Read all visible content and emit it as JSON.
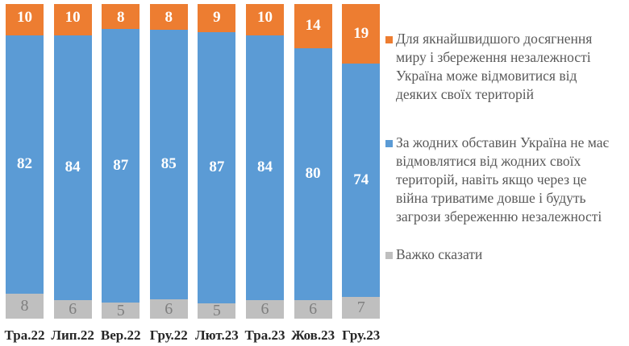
{
  "chart_data": {
    "type": "bar",
    "stacked": true,
    "percent_stacked": true,
    "title": "",
    "xlabel": "",
    "ylabel": "",
    "ylim": [
      0,
      100
    ],
    "grid": false,
    "legend_position": "right",
    "categories": [
      "Тра.22",
      "Лип.22",
      "Вер.22",
      "Гру.22",
      "Лют.23",
      "Тра.23",
      "Жов.23",
      "Гру.23"
    ],
    "series": [
      {
        "name": "Важко сказати",
        "color": "#bfbfbf",
        "values": [
          8,
          6,
          5,
          6,
          5,
          6,
          6,
          7
        ]
      },
      {
        "name": "За жодних обставин Україна не має відмовлятися від жодних своїх територій, навіть якщо через це війна триватиме довше і будуть загрози збереженню незалежності",
        "color": "#5b9bd5",
        "values": [
          82,
          84,
          87,
          85,
          87,
          84,
          80,
          74
        ]
      },
      {
        "name": "Для якнайшвидшого досягнення миру і збереження незалежності Україна може відмовитися від деяких своїх територій",
        "color": "#ed7d31",
        "values": [
          10,
          10,
          8,
          8,
          9,
          10,
          14,
          19
        ]
      }
    ]
  },
  "bars": [
    {
      "category": "Тра.22",
      "top": "10",
      "mid": "82",
      "bot": "8"
    },
    {
      "category": "Лип.22",
      "top": "10",
      "mid": "84",
      "bot": "6"
    },
    {
      "category": "Вер.22",
      "top": "8",
      "mid": "87",
      "bot": "5"
    },
    {
      "category": "Гру.22",
      "top": "8",
      "mid": "85",
      "bot": "6"
    },
    {
      "category": "Лют.23",
      "top": "9",
      "mid": "87",
      "bot": "5"
    },
    {
      "category": "Тра.23",
      "top": "10",
      "mid": "84",
      "bot": "6"
    },
    {
      "category": "Жов.23",
      "top": "14",
      "mid": "80",
      "bot": "6"
    },
    {
      "category": "Гру.23",
      "top": "19",
      "mid": "74",
      "bot": "7"
    }
  ],
  "legend": [
    {
      "label": "Для якнайшвидшого досягнення\nмиру і збереження незалежності\nУкраїна може відмовитися від\nдеяких своїх територій",
      "color": "#ed7d31"
    },
    {
      "label": "За жодних обставин Україна не має\nвідмовлятися від жодних своїх\nтериторій, навіть якщо через це\nвійна триватиме довше і будуть\nзагрози збереженню незалежності",
      "color": "#5b9bd5"
    },
    {
      "label": "Важко сказати",
      "color": "#bfbfbf"
    }
  ]
}
